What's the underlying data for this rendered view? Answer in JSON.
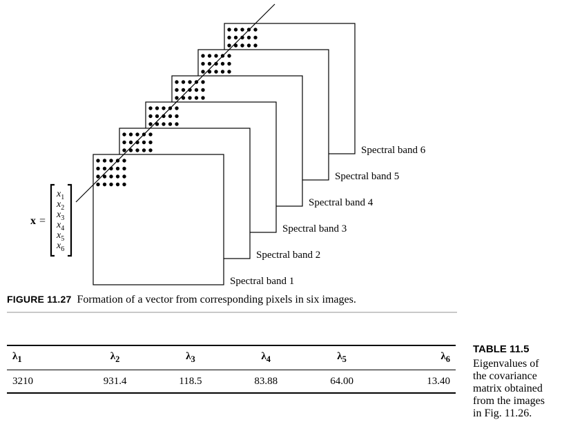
{
  "figure": {
    "vector_symbol": "x",
    "equals": "=",
    "vector_components": [
      {
        "base": "x",
        "sub": "1"
      },
      {
        "base": "x",
        "sub": "2"
      },
      {
        "base": "x",
        "sub": "3"
      },
      {
        "base": "x",
        "sub": "4"
      },
      {
        "base": "x",
        "sub": "5"
      },
      {
        "base": "x",
        "sub": "6"
      }
    ],
    "bands": [
      "Spectral band 1",
      "Spectral band 2",
      "Spectral band 3",
      "Spectral band 4",
      "Spectral band 5",
      "Spectral band 6"
    ],
    "caption_label": "FIGURE 11.27",
    "caption_text": "Formation of a vector from corresponding pixels in six images."
  },
  "table": {
    "label": "TABLE 11.5",
    "caption_lines": [
      "Eigenvalues of",
      "the covariance",
      "matrix obtained",
      "from the images",
      "in Fig. 11.26."
    ],
    "headers": [
      {
        "symbol": "λ",
        "sub": "1"
      },
      {
        "symbol": "λ",
        "sub": "2"
      },
      {
        "symbol": "λ",
        "sub": "3"
      },
      {
        "symbol": "λ",
        "sub": "4"
      },
      {
        "symbol": "λ",
        "sub": "5"
      },
      {
        "symbol": "λ",
        "sub": "6"
      }
    ],
    "values": [
      "3210",
      "931.4",
      "118.5",
      "83.88",
      "64.00",
      "13.40"
    ]
  }
}
